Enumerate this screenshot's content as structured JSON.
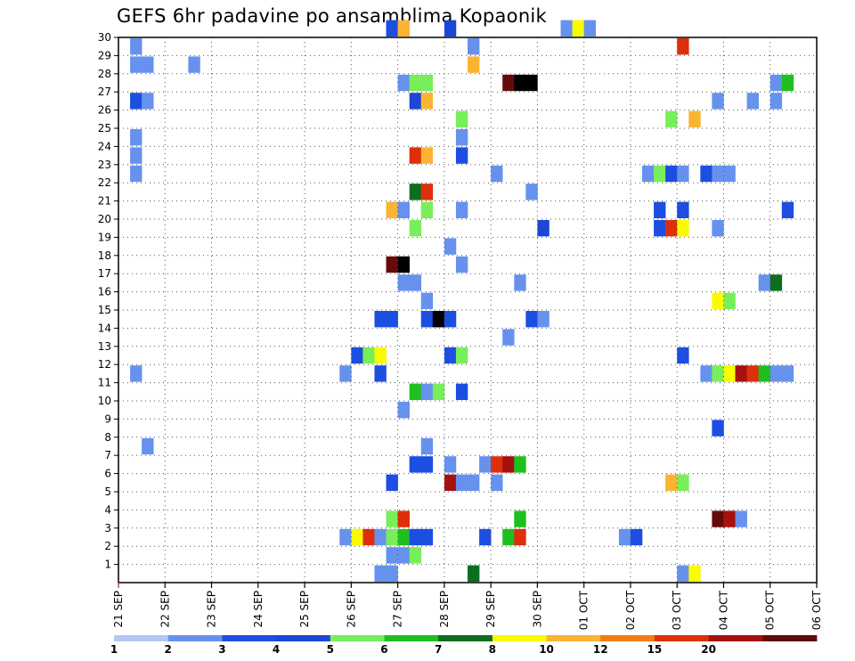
{
  "title": "GEFS 6hr padavine po ansamblima Kopaonik",
  "chart_data": {
    "type": "heatmap",
    "title": "GEFS 6hr padavine po ansamblima Kopaonik",
    "x_tick_labels": [
      "21 SEP",
      "22 SEP",
      "23 SEP",
      "24 SEP",
      "25 SEP",
      "26 SEP",
      "27 SEP",
      "28 SEP",
      "29 SEP",
      "30 SEP",
      "01 OCT",
      "02 OCT",
      "03 OCT",
      "04 OCT",
      "05 OCT",
      "06 OCT"
    ],
    "y_tick_labels": [
      "1",
      "2",
      "3",
      "4",
      "5",
      "6",
      "7",
      "8",
      "9",
      "10",
      "11",
      "12",
      "13",
      "14",
      "15",
      "16",
      "17",
      "18",
      "19",
      "20",
      "21",
      "22",
      "23",
      "24",
      "25",
      "26",
      "27",
      "28",
      "29",
      "30"
    ],
    "y_range": [
      0,
      30
    ],
    "x_range_days": [
      0,
      15
    ],
    "time_step_hours": 6,
    "grid": "dotted",
    "colorbar": {
      "labels": [
        "1",
        "2",
        "3",
        "4",
        "5",
        "6",
        "7",
        "8",
        "10",
        "12",
        "15",
        "20"
      ],
      "colors": [
        "#b4c8f4",
        "#6692ee",
        "#1d4ee2",
        "#1c46d8",
        "#78ee5a",
        "#1fbf1f",
        "#0c6e1e",
        "#fafa00",
        "#fab432",
        "#f07c14",
        "#dc2f0a",
        "#a5110f",
        "#650a0a"
      ]
    },
    "cells": [
      [
        23,
        30,
        2
      ],
      [
        24,
        30,
        8
      ],
      [
        28,
        30,
        3
      ],
      [
        38,
        30,
        1
      ],
      [
        39,
        30,
        7
      ],
      [
        40,
        30,
        1
      ],
      [
        1,
        29,
        1
      ],
      [
        30,
        29,
        1
      ],
      [
        48,
        29,
        10
      ],
      [
        1,
        28,
        1
      ],
      [
        2,
        28,
        1
      ],
      [
        6,
        28,
        1
      ],
      [
        30,
        28,
        8
      ],
      [
        24,
        27,
        1
      ],
      [
        25,
        27,
        4
      ],
      [
        26,
        27,
        4
      ],
      [
        33,
        27,
        12
      ],
      [
        34,
        27,
        13
      ],
      [
        35,
        27,
        13
      ],
      [
        56,
        27,
        1
      ],
      [
        57,
        27,
        5
      ],
      [
        1,
        26,
        2
      ],
      [
        2,
        26,
        1
      ],
      [
        25,
        26,
        3
      ],
      [
        26,
        26,
        8
      ],
      [
        51,
        26,
        1
      ],
      [
        54,
        26,
        1
      ],
      [
        56,
        26,
        1
      ],
      [
        29,
        25,
        4
      ],
      [
        47,
        25,
        4
      ],
      [
        49,
        25,
        8
      ],
      [
        1,
        24,
        1
      ],
      [
        29,
        24,
        1
      ],
      [
        1,
        23,
        1
      ],
      [
        25,
        23,
        10
      ],
      [
        26,
        23,
        8
      ],
      [
        29,
        23,
        2
      ],
      [
        1,
        22,
        1
      ],
      [
        32,
        22,
        1
      ],
      [
        45,
        22,
        1
      ],
      [
        46,
        22,
        4
      ],
      [
        47,
        22,
        2
      ],
      [
        48,
        22,
        1
      ],
      [
        50,
        22,
        2
      ],
      [
        51,
        22,
        1
      ],
      [
        52,
        22,
        1
      ],
      [
        25,
        21,
        6
      ],
      [
        26,
        21,
        10
      ],
      [
        35,
        21,
        1
      ],
      [
        23,
        20,
        8
      ],
      [
        24,
        20,
        1
      ],
      [
        26,
        20,
        4
      ],
      [
        29,
        20,
        1
      ],
      [
        46,
        20,
        2
      ],
      [
        48,
        20,
        2
      ],
      [
        57,
        20,
        2
      ],
      [
        25,
        19,
        4
      ],
      [
        36,
        19,
        3
      ],
      [
        46,
        19,
        2
      ],
      [
        47,
        19,
        10
      ],
      [
        48,
        19,
        7
      ],
      [
        51,
        19,
        1
      ],
      [
        28,
        18,
        1
      ],
      [
        23,
        17,
        12
      ],
      [
        24,
        17,
        13
      ],
      [
        29,
        17,
        1
      ],
      [
        24,
        16,
        1
      ],
      [
        25,
        16,
        1
      ],
      [
        34,
        16,
        1
      ],
      [
        55,
        16,
        1
      ],
      [
        56,
        16,
        6
      ],
      [
        26,
        15,
        1
      ],
      [
        51,
        15,
        7
      ],
      [
        52,
        15,
        4
      ],
      [
        22,
        14,
        2
      ],
      [
        23,
        14,
        2
      ],
      [
        26,
        14,
        2
      ],
      [
        27,
        14,
        13
      ],
      [
        28,
        14,
        2
      ],
      [
        35,
        14,
        2
      ],
      [
        36,
        14,
        1
      ],
      [
        33,
        13,
        1
      ],
      [
        20,
        12,
        2
      ],
      [
        21,
        12,
        4
      ],
      [
        22,
        12,
        7
      ],
      [
        28,
        12,
        2
      ],
      [
        29,
        12,
        4
      ],
      [
        48,
        12,
        2
      ],
      [
        1,
        11,
        1
      ],
      [
        19,
        11,
        1
      ],
      [
        22,
        11,
        2
      ],
      [
        50,
        11,
        1
      ],
      [
        51,
        11,
        4
      ],
      [
        52,
        11,
        7
      ],
      [
        53,
        11,
        11
      ],
      [
        54,
        11,
        10
      ],
      [
        55,
        11,
        5
      ],
      [
        56,
        11,
        1
      ],
      [
        57,
        11,
        1
      ],
      [
        25,
        10,
        5
      ],
      [
        26,
        10,
        1
      ],
      [
        27,
        10,
        4
      ],
      [
        29,
        10,
        2
      ],
      [
        24,
        9,
        1
      ],
      [
        51,
        8,
        2
      ],
      [
        2,
        7,
        1
      ],
      [
        26,
        7,
        1
      ],
      [
        25,
        6,
        2
      ],
      [
        26,
        6,
        2
      ],
      [
        28,
        6,
        1
      ],
      [
        31,
        6,
        1
      ],
      [
        32,
        6,
        10
      ],
      [
        33,
        6,
        11
      ],
      [
        34,
        6,
        5
      ],
      [
        23,
        5,
        2
      ],
      [
        28,
        5,
        11
      ],
      [
        29,
        5,
        1
      ],
      [
        30,
        5,
        1
      ],
      [
        32,
        5,
        1
      ],
      [
        47,
        5,
        8
      ],
      [
        48,
        5,
        4
      ],
      [
        23,
        3,
        4
      ],
      [
        24,
        3,
        10
      ],
      [
        34,
        3,
        5
      ],
      [
        51,
        3,
        12
      ],
      [
        52,
        3,
        11
      ],
      [
        53,
        3,
        1
      ],
      [
        19,
        2,
        1
      ],
      [
        20,
        2,
        7
      ],
      [
        21,
        2,
        10
      ],
      [
        22,
        2,
        1
      ],
      [
        23,
        2,
        4
      ],
      [
        24,
        2,
        5
      ],
      [
        25,
        2,
        2
      ],
      [
        26,
        2,
        2
      ],
      [
        31,
        2,
        2
      ],
      [
        33,
        2,
        5
      ],
      [
        34,
        2,
        10
      ],
      [
        43,
        2,
        1
      ],
      [
        44,
        2,
        2
      ],
      [
        23,
        1,
        1
      ],
      [
        24,
        1,
        1
      ],
      [
        25,
        1,
        4
      ],
      [
        22,
        0,
        1
      ],
      [
        23,
        0,
        1
      ],
      [
        30,
        0,
        6
      ],
      [
        48,
        0,
        1
      ],
      [
        49,
        0,
        7
      ]
    ]
  }
}
